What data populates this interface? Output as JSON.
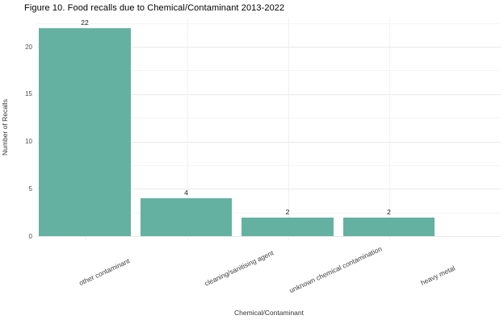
{
  "figure": {
    "title": "Figure 10. Food recalls due to Chemical/Contaminant 2013-2022"
  },
  "chart_data": {
    "type": "bar",
    "title": "Figure 10. Food recalls due to Chemical/Contaminant 2013-2022",
    "categories": [
      "other contaminant",
      "cleaning/sanitising agent",
      "unknown chemical contamination",
      "heavy metal"
    ],
    "values": [
      22,
      4,
      2,
      2
    ],
    "bar_labels": [
      "22",
      "4",
      "2",
      "2"
    ],
    "xlabel": "Chemical/Contaminant",
    "ylabel": "Number of Recalls",
    "ylim": [
      0,
      23
    ],
    "yticks": [
      0,
      5,
      10,
      15,
      20
    ],
    "minor_yticks": [
      2.5,
      7.5,
      12.5,
      17.5,
      22.5
    ],
    "grid": "on",
    "legend": "none",
    "colors": {
      "bar_fill": "#65b1a1",
      "background": "#ffffff",
      "grid_major": "#e9e9e9",
      "grid_minor": "#f5f5f5",
      "grid_vertical": "#f1f1f1",
      "text": "#333333"
    }
  }
}
